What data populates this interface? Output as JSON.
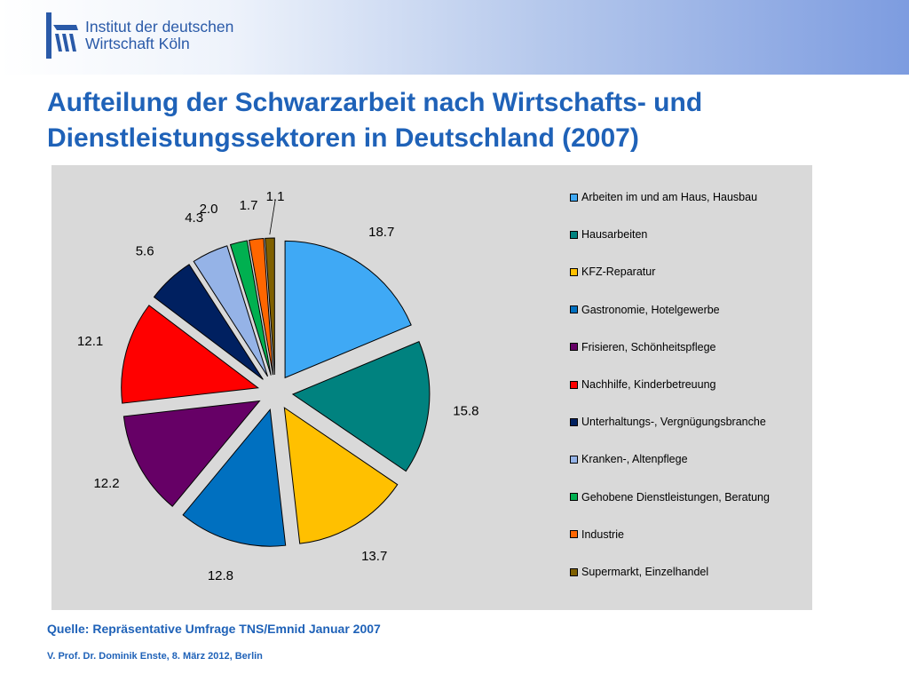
{
  "header": {
    "logo_line1": "Institut der deutschen",
    "logo_line2": "Wirtschaft Köln"
  },
  "slide": {
    "title_line1": "Aufteilung der Schwarzarbeit nach Wirtschafts- und",
    "title_line2": "Dienstleistungssektoren in Deutschland (2007)",
    "source": "Quelle: Repräsentative Umfrage TNS/Emnid Januar 2007",
    "footer": "V. Prof. Dr. Dominik Enste, 8. März 2012, Berlin"
  },
  "chart_data": {
    "type": "pie",
    "exploded": true,
    "legend_position": "right",
    "background": "#d9d9d9",
    "categories": [
      "Arbeiten im und am Haus, Hausbau",
      "Hausarbeiten",
      "KFZ-Reparatur",
      "Gastronomie, Hotelgewerbe",
      "Frisieren, Schönheitspflege",
      "Nachhilfe, Kinderbetreuung",
      "Unterhaltungs-, Vergnügungsbranche",
      "Kranken-, Altenpflege",
      "Gehobene Dienstleistungen, Beratung",
      "Industrie",
      "Supermarkt, Einzelhandel"
    ],
    "values": [
      18.7,
      15.8,
      13.7,
      12.8,
      12.2,
      12.1,
      5.6,
      4.3,
      2.0,
      1.7,
      1.1
    ],
    "labels": [
      "18.7",
      "15.8",
      "13.7",
      "12.8",
      "12.2",
      "12.1",
      "5.6",
      "4.3",
      "2.0",
      "1.7",
      "1.1"
    ],
    "colors": [
      "#3fa9f5",
      "#00827f",
      "#ffc000",
      "#0070c0",
      "#660066",
      "#ff0000",
      "#002060",
      "#95b3e7",
      "#00b050",
      "#ff6600",
      "#7f6000"
    ]
  }
}
